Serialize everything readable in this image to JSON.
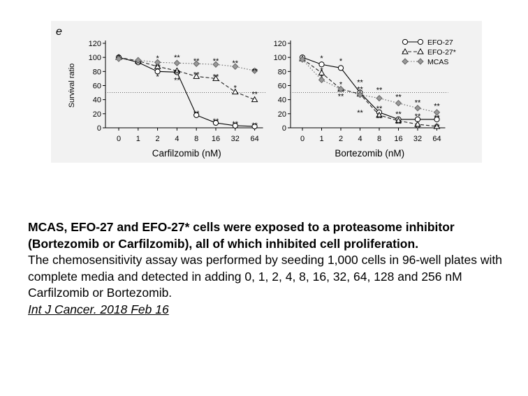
{
  "panel_letter": "e",
  "chart_data": [
    {
      "type": "line",
      "title": "",
      "xlabel": "Carfilzomib (nM)",
      "ylabel": "Survival ratio",
      "categories": [
        "0",
        "1",
        "2",
        "4",
        "8",
        "16",
        "32",
        "64"
      ],
      "ylim": [
        0,
        120
      ],
      "yticks": [
        "0",
        "20",
        "40",
        "60",
        "80",
        "100",
        "120"
      ],
      "reference_line": 50,
      "series": [
        {
          "name": "EFO-27",
          "marker": "circle",
          "values": [
            100,
            93,
            80,
            79,
            18,
            7,
            3,
            2
          ]
        },
        {
          "name": "EFO-27*",
          "marker": "triangle",
          "values": [
            100,
            95,
            87,
            81,
            73,
            70,
            51,
            40
          ]
        },
        {
          "name": "MCAS",
          "marker": "diamond",
          "values": [
            98,
            96,
            93,
            92,
            91,
            90,
            87,
            81
          ]
        }
      ],
      "annotations": [
        {
          "x": "2",
          "y": 99,
          "text": "*"
        },
        {
          "x": "2",
          "y": 73,
          "text": "*"
        },
        {
          "x": "2",
          "y": 87,
          "text": "**"
        },
        {
          "x": "4",
          "y": 100,
          "text": "**"
        },
        {
          "x": "4",
          "y": 79,
          "text": "**"
        },
        {
          "x": "4",
          "y": 68,
          "text": "**"
        },
        {
          "x": "8",
          "y": 95,
          "text": "**"
        },
        {
          "x": "8",
          "y": 76,
          "text": "**"
        },
        {
          "x": "8",
          "y": 21,
          "text": "**"
        },
        {
          "x": "16",
          "y": 95,
          "text": "**"
        },
        {
          "x": "16",
          "y": 73,
          "text": "**"
        },
        {
          "x": "16",
          "y": 10,
          "text": "**"
        },
        {
          "x": "32",
          "y": 92,
          "text": "**"
        },
        {
          "x": "32",
          "y": 57,
          "text": "*"
        },
        {
          "x": "32",
          "y": 6,
          "text": "**"
        },
        {
          "x": "64",
          "y": 81,
          "text": "**"
        },
        {
          "x": "64",
          "y": 48,
          "text": "**"
        },
        {
          "x": "64",
          "y": 4,
          "text": "**"
        }
      ]
    },
    {
      "type": "line",
      "title": "",
      "xlabel": "Bortezomib (nM)",
      "ylabel": "",
      "categories": [
        "0",
        "1",
        "2",
        "4",
        "8",
        "16",
        "32",
        "64"
      ],
      "ylim": [
        0,
        120
      ],
      "yticks": [
        "0",
        "20",
        "40",
        "60",
        "80",
        "100",
        "120"
      ],
      "reference_line": 50,
      "legend_position": "top-right",
      "series": [
        {
          "name": "EFO-27",
          "marker": "circle",
          "values": [
            100,
            90,
            85,
            50,
            22,
            12,
            12,
            12
          ]
        },
        {
          "name": "EFO-27*",
          "marker": "triangle",
          "values": [
            98,
            78,
            55,
            48,
            18,
            10,
            5,
            2
          ]
        },
        {
          "name": "MCAS",
          "marker": "diamond",
          "values": [
            97,
            68,
            55,
            47,
            42,
            35,
            28,
            22
          ]
        }
      ],
      "annotations": [
        {
          "x": "1",
          "y": 99,
          "text": "*"
        },
        {
          "x": "1",
          "y": 82,
          "text": "*"
        },
        {
          "x": "1",
          "y": 72,
          "text": "*"
        },
        {
          "x": "2",
          "y": 95,
          "text": "*"
        },
        {
          "x": "2",
          "y": 62,
          "text": "*"
        },
        {
          "x": "2",
          "y": 45,
          "text": "**"
        },
        {
          "x": "4",
          "y": 65,
          "text": "**"
        },
        {
          "x": "4",
          "y": 55,
          "text": "**"
        },
        {
          "x": "4",
          "y": 22,
          "text": "**"
        },
        {
          "x": "8",
          "y": 54,
          "text": "**"
        },
        {
          "x": "8",
          "y": 28,
          "text": "**"
        },
        {
          "x": "8",
          "y": 14,
          "text": "**"
        },
        {
          "x": "16",
          "y": 44,
          "text": "**"
        },
        {
          "x": "16",
          "y": 20,
          "text": "**"
        },
        {
          "x": "16",
          "y": 6,
          "text": "**"
        },
        {
          "x": "32",
          "y": 36,
          "text": "**"
        },
        {
          "x": "32",
          "y": 17,
          "text": "**"
        },
        {
          "x": "32",
          "y": 0,
          "text": "**"
        },
        {
          "x": "64",
          "y": 31,
          "text": "**"
        },
        {
          "x": "64",
          "y": 15,
          "text": "**"
        },
        {
          "x": "64",
          "y": 2,
          "text": "**"
        }
      ]
    }
  ],
  "legend": [
    {
      "label": "EFO-27",
      "marker": "circle",
      "line": "solid"
    },
    {
      "label": "EFO-27*",
      "marker": "triangle",
      "line": "dashed"
    },
    {
      "label": "MCAS",
      "marker": "diamond",
      "line": "dotted"
    }
  ],
  "caption": {
    "bold_text": "MCAS, EFO-27 and EFO-27* cells were exposed to a proteasome inhibitor (Bortezomib or Carfilzomib), all of which inhibited cell proliferation.",
    "body_text": "The chemosensitivity assay was performed by seeding 1,000 cells in 96-well plates with complete media and detected in adding 0, 1, 2, 4, 8, 16, 32, 64, 128 and 256 nM Carfilzomib or Bortezomib.",
    "citation": "Int J Cancer. 2018 Feb 16"
  }
}
